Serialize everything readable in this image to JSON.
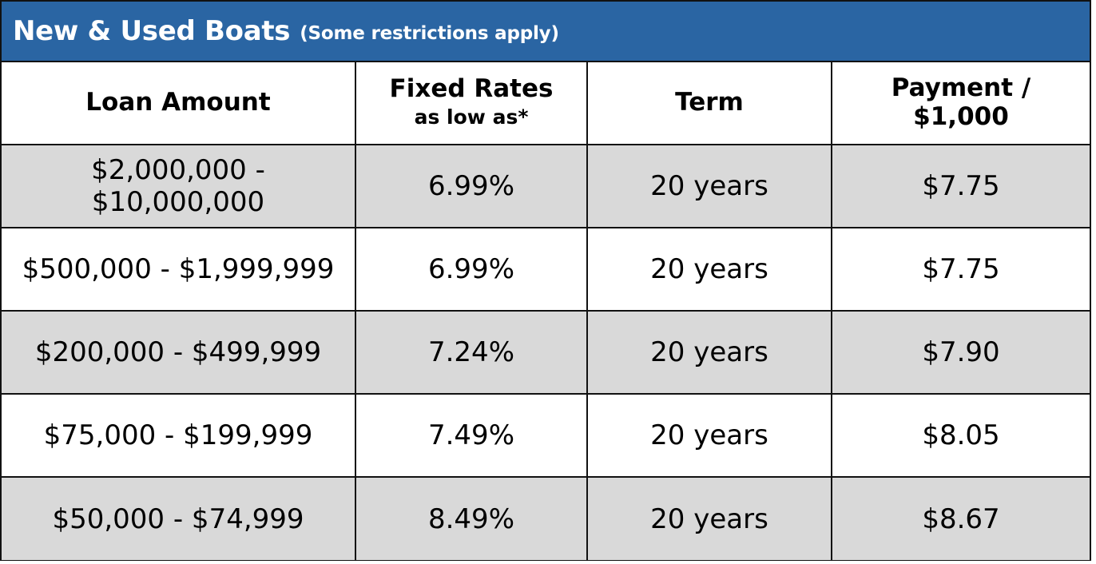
{
  "header": {
    "title": "New & Used Boats",
    "subtitle": "(Some restrictions apply)"
  },
  "columns": {
    "loan_amount": "Loan Amount",
    "fixed_rates": "Fixed Rates",
    "fixed_rates_sub": "as low as*",
    "term": "Term",
    "payment_line1": "Payment /",
    "payment_line2": "$1,000"
  },
  "rows": [
    {
      "loan_amount": "$2,000,000 - $10,000,000",
      "rate": "6.99%",
      "term": "20 years",
      "payment": "$7.75"
    },
    {
      "loan_amount": "$500,000 - $1,999,999",
      "rate": "6.99%",
      "term": "20 years",
      "payment": "$7.75"
    },
    {
      "loan_amount": "$200,000 - $499,999",
      "rate": "7.24%",
      "term": "20 years",
      "payment": "$7.90"
    },
    {
      "loan_amount": "$75,000 - $199,999",
      "rate": "7.49%",
      "term": "20 years",
      "payment": "$8.05"
    },
    {
      "loan_amount": "$50,000 - $74,999",
      "rate": "8.49%",
      "term": "20 years",
      "payment": "$8.67"
    }
  ],
  "colors": {
    "header_blue": "#2a65a3",
    "row_shade": "#d9d9d9",
    "border": "#111111"
  }
}
